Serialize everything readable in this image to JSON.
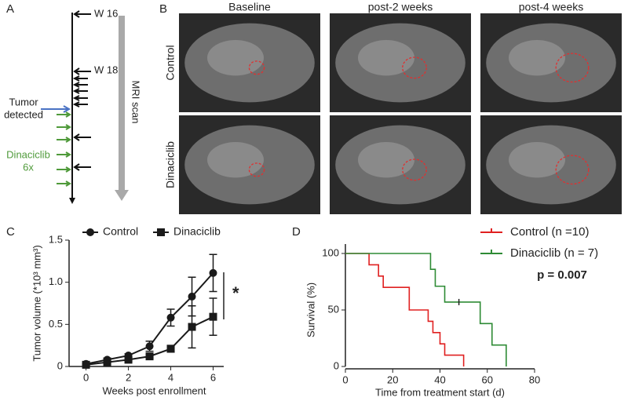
{
  "panels": {
    "a": "A",
    "b": "B",
    "c": "C",
    "d": "D"
  },
  "timeline": {
    "week_labels": [
      "W 16",
      "W 18"
    ],
    "tumor_label": [
      "Tumor",
      "detected"
    ],
    "drug_label": [
      "Dinaciclib",
      "6x"
    ],
    "scan_label": "MRI scan"
  },
  "mri": {
    "columns": [
      "Baseline",
      "post-2 weeks",
      "post-4 weeks"
    ],
    "rows": [
      "Control",
      "Dinaciclib"
    ]
  },
  "chart_data": [
    {
      "type": "line",
      "xlabel": "Weeks post enrollment",
      "ylabel": "Tumor volume (*10³ mm³)",
      "x": [
        0,
        1,
        2,
        3,
        4,
        5,
        6
      ],
      "xlim": [
        -0.8,
        6.5
      ],
      "ylim": [
        0,
        1.5
      ],
      "xticks": [
        0,
        2,
        4,
        6
      ],
      "yticks": [
        0,
        0.5,
        {
          "value": 1,
          "label": "1.0"
        },
        1.5
      ],
      "legend": "top",
      "annotation": "*",
      "series": [
        {
          "name": "Control",
          "color": "#1a1a1a",
          "marker": "circle",
          "values": [
            0.03,
            0.08,
            0.13,
            0.24,
            0.58,
            0.83,
            1.11
          ],
          "errors": [
            0.01,
            0.02,
            0.02,
            0.06,
            0.1,
            0.23,
            0.22
          ]
        },
        {
          "name": "Dinaciclib",
          "color": "#1a1a1a",
          "marker": "square",
          "values": [
            0.02,
            0.05,
            0.08,
            0.12,
            0.21,
            0.47,
            0.59
          ],
          "errors": [
            0.01,
            0.01,
            0.02,
            0.02,
            0.04,
            0.25,
            0.22
          ]
        }
      ]
    },
    {
      "type": "step",
      "xlabel": "Time from treatment start (d)",
      "ylabel": "Survival (%)",
      "xlim": [
        0,
        80
      ],
      "ylim": [
        0,
        100
      ],
      "xticks": [
        0,
        20,
        40,
        60,
        80
      ],
      "yticks": [
        0,
        50,
        100
      ],
      "legend": "top-right",
      "annotation": "p = 0.007",
      "series": [
        {
          "name": "Control (n =10)",
          "color": "#e02020",
          "x": [
            0,
            10,
            14,
            16,
            27,
            35,
            37,
            40,
            42,
            50
          ],
          "values": [
            100,
            90,
            80,
            70,
            50,
            40,
            30,
            20,
            10,
            0
          ],
          "censored": []
        },
        {
          "name": "Dinaciclib (n = 7)",
          "color": "#2e8b35",
          "x": [
            0,
            36,
            38,
            42,
            57,
            62,
            68
          ],
          "values": [
            100,
            86,
            71,
            57,
            38,
            19,
            0
          ],
          "censored": [
            48
          ]
        }
      ]
    }
  ]
}
